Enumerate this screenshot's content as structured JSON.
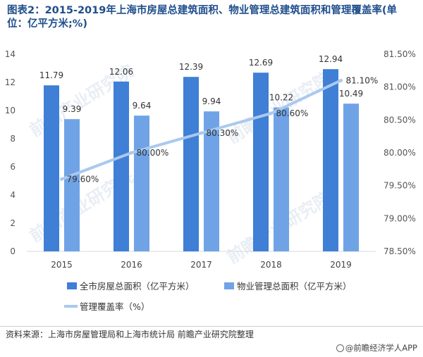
{
  "title": "图表2：2015-2019年上海市房屋总建筑面积、物业管理总建筑面积和管理覆盖率(单位：亿平方米;%)",
  "source": "资料来源：上海市房屋管理局和上海市统计局  前瞻产业研究院整理",
  "brand": "@前瞻经济学人APP",
  "watermark": "前瞻产业研究院",
  "colors": {
    "series1": "#3f7fd6",
    "series2": "#6fa3e6",
    "line": "#aac9ef"
  },
  "chart_data": {
    "type": "bar",
    "title": "图表2：2015-2019年上海市房屋总建筑面积、物业管理总建筑面积和管理覆盖率(单位：亿平方米;%)",
    "categories": [
      "2015",
      "2016",
      "2017",
      "2018",
      "2019"
    ],
    "series": [
      {
        "name": "全市房屋总面积（亿平方米）",
        "type": "bar",
        "axis": "left",
        "values": [
          11.79,
          12.06,
          12.39,
          12.69,
          12.94
        ]
      },
      {
        "name": "物业管理总面积（亿平方米）",
        "type": "bar",
        "axis": "left",
        "values": [
          9.39,
          9.64,
          9.94,
          10.22,
          10.49
        ]
      },
      {
        "name": "管理覆盖率（%）",
        "type": "line",
        "axis": "right",
        "values": [
          79.6,
          80.0,
          80.3,
          80.6,
          81.1
        ],
        "labels": [
          "79.60%",
          "80.00%",
          "80.30%",
          "80.60%",
          "81.10%"
        ]
      }
    ],
    "ylim": [
      0,
      14
    ],
    "yticks": [
      "0",
      "2",
      "4",
      "6",
      "8",
      "10",
      "12",
      "14"
    ],
    "y2lim": [
      78.5,
      81.5
    ],
    "y2ticks": [
      "78.50%",
      "79.00%",
      "79.50%",
      "80.00%",
      "80.50%",
      "81.00%",
      "81.50%"
    ],
    "legend": "bottom"
  }
}
